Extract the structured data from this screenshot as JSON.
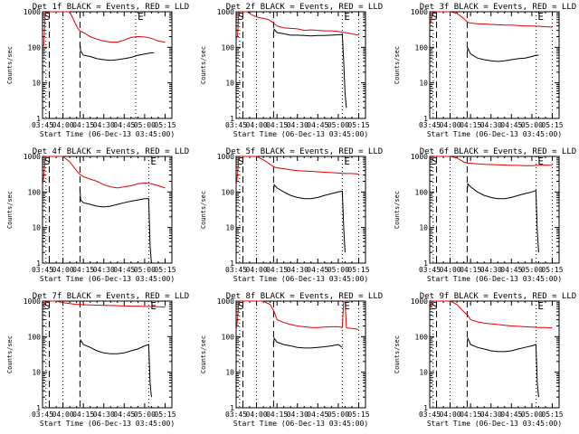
{
  "colors": {
    "events": "#000000",
    "lld": "#e00000",
    "markers": "#000000"
  },
  "chart_data": [
    {
      "type": "line",
      "title": "Det 1f BLACK = Events, RED = LLD",
      "xlabel": "Start Time (06-Dec-13 03:45:00)",
      "ylabel": "Counts/sec",
      "xticks": [
        "03:45",
        "04:00",
        "04:15",
        "04:30",
        "04:45",
        "05:00",
        "05:15"
      ],
      "yticks": [
        "1",
        "10",
        "100",
        "1000"
      ],
      "ylim": [
        1,
        1000
      ],
      "yscale": "log",
      "xlim_minutes_after_start": [
        0,
        95
      ],
      "annotations": [
        "S",
        "E"
      ],
      "dotted_lines_min": [
        2.5,
        15,
        68.5
      ],
      "dashed_lines_min": [
        5,
        27.5
      ],
      "series": [
        {
          "name": "Events",
          "x": [
            27.5,
            28,
            30,
            35,
            40,
            45,
            50,
            55,
            60,
            65,
            70,
            75,
            80,
            82
          ],
          "y": [
            130,
            80,
            60,
            55,
            48,
            45,
            43,
            45,
            48,
            52,
            60,
            65,
            70,
            70
          ]
        },
        {
          "name": "LLD",
          "x": [
            0,
            1,
            2,
            5,
            10,
            15,
            20,
            25,
            27,
            28,
            30,
            35,
            40,
            45,
            50,
            55,
            60,
            65,
            70,
            75,
            80,
            85,
            90
          ],
          "y": [
            100,
            120,
            900,
            1000,
            1000,
            1000,
            1000,
            400,
            300,
            280,
            260,
            200,
            170,
            150,
            140,
            140,
            160,
            190,
            200,
            195,
            180,
            150,
            140
          ]
        }
      ]
    },
    {
      "type": "line",
      "title": "Det 2f BLACK = Events, RED = LLD",
      "xlabel": "Start Time (06-Dec-13 03:45:00)",
      "ylabel": "Counts/sec",
      "xticks": [
        "03:45",
        "04:00",
        "04:15",
        "04:30",
        "04:45",
        "05:00",
        "05:15"
      ],
      "yticks": [
        "1",
        "10",
        "100",
        "1000"
      ],
      "ylim": [
        1,
        1000
      ],
      "yscale": "log",
      "xlim_minutes_after_start": [
        0,
        95
      ],
      "annotations": [
        "S",
        "E"
      ],
      "dotted_lines_min": [
        2.5,
        15,
        78,
        90
      ],
      "dashed_lines_min": [
        5,
        27.5
      ],
      "series": [
        {
          "name": "Events",
          "x": [
            27.5,
            28,
            30,
            35,
            40,
            45,
            50,
            55,
            60,
            65,
            70,
            75,
            78,
            79,
            80,
            81
          ],
          "y": [
            250,
            320,
            260,
            240,
            220,
            220,
            215,
            210,
            215,
            215,
            220,
            225,
            230,
            40,
            5,
            2
          ]
        },
        {
          "name": "LLD",
          "x": [
            0,
            1,
            2,
            4,
            8,
            12,
            16,
            20,
            24,
            27,
            30,
            35,
            40,
            45,
            50,
            55,
            60,
            65,
            70,
            75,
            80,
            85,
            90
          ],
          "y": [
            180,
            200,
            1000,
            1000,
            1000,
            800,
            700,
            650,
            600,
            500,
            400,
            350,
            340,
            330,
            300,
            310,
            300,
            290,
            290,
            280,
            260,
            240,
            220
          ]
        }
      ]
    },
    {
      "type": "line",
      "title": "Det 3f BLACK = Events, RED = LLD",
      "xlabel": "Start Time (06-Dec-13 03:45:00)",
      "ylabel": "Counts/sec",
      "xticks": [
        "03:45",
        "04:00",
        "04:15",
        "04:30",
        "04:45",
        "05:00",
        "05:15"
      ],
      "yticks": [
        "1",
        "10",
        "100",
        "1000"
      ],
      "ylim": [
        1,
        1000
      ],
      "yscale": "log",
      "xlim_minutes_after_start": [
        0,
        95
      ],
      "annotations": [
        "S",
        "E"
      ],
      "dotted_lines_min": [
        2.5,
        15,
        78,
        90
      ],
      "dashed_lines_min": [
        5,
        27.5
      ],
      "series": [
        {
          "name": "Events",
          "x": [
            27.5,
            28,
            30,
            35,
            40,
            45,
            50,
            55,
            60,
            65,
            70,
            75,
            78,
            80
          ],
          "y": [
            70,
            95,
            65,
            50,
            45,
            42,
            40,
            42,
            45,
            48,
            50,
            55,
            60,
            60
          ]
        },
        {
          "name": "LLD",
          "x": [
            0,
            1,
            2,
            5,
            10,
            15,
            20,
            25,
            28,
            30,
            35,
            40,
            45,
            50,
            55,
            60,
            65,
            70,
            75,
            80,
            85,
            90
          ],
          "y": [
            400,
            600,
            900,
            1000,
            1000,
            1000,
            900,
            650,
            500,
            480,
            460,
            450,
            440,
            430,
            420,
            420,
            410,
            400,
            400,
            390,
            380,
            370
          ]
        }
      ]
    },
    {
      "type": "line",
      "title": "Det 4f BLACK = Events, RED = LLD",
      "xlabel": "Start Time (06-Dec-13 03:45:00)",
      "ylabel": "Counts/sec",
      "xticks": [
        "03:45",
        "04:00",
        "04:15",
        "04:30",
        "04:45",
        "05:00",
        "05:15"
      ],
      "yticks": [
        "1",
        "10",
        "100",
        "1000"
      ],
      "ylim": [
        1,
        1000
      ],
      "yscale": "log",
      "xlim_minutes_after_start": [
        0,
        95
      ],
      "annotations": [
        "S",
        "E"
      ],
      "dotted_lines_min": [
        2.5,
        15,
        78
      ],
      "dashed_lines_min": [
        5,
        27.5
      ],
      "series": [
        {
          "name": "Events",
          "x": [
            27.5,
            28,
            30,
            35,
            40,
            45,
            50,
            55,
            60,
            65,
            70,
            75,
            78,
            79,
            80
          ],
          "y": [
            120,
            60,
            50,
            45,
            40,
            38,
            40,
            45,
            50,
            55,
            60,
            65,
            65,
            3,
            1
          ]
        },
        {
          "name": "LLD",
          "x": [
            0,
            1,
            2,
            5,
            10,
            15,
            20,
            25,
            28,
            30,
            35,
            40,
            45,
            50,
            55,
            60,
            65,
            70,
            75,
            80,
            85,
            90
          ],
          "y": [
            150,
            300,
            1000,
            1000,
            1000,
            1000,
            700,
            400,
            300,
            270,
            230,
            200,
            160,
            140,
            130,
            140,
            150,
            170,
            180,
            170,
            150,
            130
          ]
        }
      ]
    },
    {
      "type": "line",
      "title": "Det 5f BLACK = Events, RED = LLD",
      "xlabel": "Start Time (06-Dec-13 03:45:00)",
      "ylabel": "Counts/sec",
      "xticks": [
        "03:45",
        "04:00",
        "04:15",
        "04:30",
        "04:45",
        "05:00",
        "05:15"
      ],
      "yticks": [
        "1",
        "10",
        "100",
        "1000"
      ],
      "ylim": [
        1,
        1000
      ],
      "yscale": "log",
      "xlim_minutes_after_start": [
        0,
        95
      ],
      "annotations": [
        "S",
        "E"
      ],
      "dotted_lines_min": [
        2.5,
        15,
        78,
        90
      ],
      "dashed_lines_min": [
        5,
        27.5
      ],
      "series": [
        {
          "name": "Events",
          "x": [
            27.5,
            28,
            30,
            35,
            40,
            45,
            50,
            55,
            60,
            65,
            70,
            75,
            78,
            79,
            80
          ],
          "y": [
            100,
            160,
            130,
            100,
            80,
            70,
            65,
            65,
            70,
            80,
            90,
            100,
            105,
            10,
            2
          ]
        },
        {
          "name": "LLD",
          "x": [
            0,
            1,
            2,
            5,
            10,
            15,
            20,
            25,
            28,
            30,
            35,
            40,
            45,
            50,
            55,
            60,
            65,
            70,
            75,
            80,
            85,
            90
          ],
          "y": [
            150,
            300,
            1000,
            1000,
            1000,
            1000,
            800,
            600,
            500,
            480,
            450,
            420,
            400,
            390,
            380,
            370,
            360,
            350,
            340,
            330,
            330,
            320
          ]
        }
      ]
    },
    {
      "type": "line",
      "title": "Det 6f BLACK = Events, RED = LLD",
      "xlabel": "Start Time (06-Dec-13 03:45:00)",
      "ylabel": "Counts/sec",
      "xticks": [
        "03:45",
        "04:00",
        "04:15",
        "04:30",
        "04:45",
        "05:00",
        "05:15"
      ],
      "yticks": [
        "1",
        "10",
        "100",
        "1000"
      ],
      "ylim": [
        1,
        1000
      ],
      "yscale": "log",
      "xlim_minutes_after_start": [
        0,
        95
      ],
      "annotations": [
        "S",
        "E"
      ],
      "dotted_lines_min": [
        2.5,
        15,
        78,
        90
      ],
      "dashed_lines_min": [
        5,
        27.5
      ],
      "series": [
        {
          "name": "Events",
          "x": [
            27.5,
            28,
            30,
            35,
            40,
            45,
            50,
            55,
            60,
            65,
            70,
            75,
            78,
            79,
            80
          ],
          "y": [
            100,
            170,
            140,
            100,
            80,
            70,
            65,
            65,
            70,
            80,
            90,
            100,
            110,
            8,
            2
          ]
        },
        {
          "name": "LLD",
          "x": [
            0,
            1,
            2,
            5,
            10,
            15,
            20,
            25,
            28,
            30,
            35,
            40,
            45,
            50,
            55,
            60,
            65,
            70,
            75,
            80,
            85,
            90
          ],
          "y": [
            800,
            900,
            1000,
            1000,
            1000,
            1000,
            900,
            700,
            650,
            640,
            620,
            600,
            590,
            580,
            570,
            560,
            560,
            550,
            550,
            560,
            570,
            560
          ]
        }
      ]
    },
    {
      "type": "line",
      "title": "Det 7f BLACK = Events, RED = LLD",
      "xlabel": "Start Time (06-Dec-13 03:45:00)",
      "ylabel": "Counts/sec",
      "xticks": [
        "03:45",
        "04:00",
        "04:15",
        "04:30",
        "04:45",
        "05:00",
        "05:15"
      ],
      "yticks": [
        "1",
        "10",
        "100",
        "1000"
      ],
      "ylim": [
        1,
        1000
      ],
      "yscale": "log",
      "xlim_minutes_after_start": [
        0,
        95
      ],
      "annotations": [
        "S",
        "E"
      ],
      "dotted_lines_min": [
        2.5,
        15,
        78
      ],
      "dashed_lines_min": [
        5,
        27.5
      ],
      "series": [
        {
          "name": "Events",
          "x": [
            27.5,
            28,
            30,
            35,
            40,
            45,
            50,
            55,
            60,
            65,
            70,
            75,
            78,
            79,
            80
          ],
          "y": [
            60,
            80,
            60,
            50,
            40,
            35,
            33,
            33,
            35,
            40,
            45,
            55,
            60,
            5,
            2
          ]
        },
        {
          "name": "LLD",
          "x": [
            0,
            1,
            2,
            5,
            10,
            15,
            20,
            25,
            28,
            30,
            35,
            40,
            45,
            50,
            55,
            60,
            65,
            70,
            75,
            80,
            85,
            90
          ],
          "y": [
            700,
            800,
            900,
            1000,
            1000,
            900,
            850,
            800,
            800,
            790,
            780,
            770,
            760,
            750,
            740,
            730,
            720,
            720,
            710,
            700,
            690,
            680
          ]
        }
      ]
    },
    {
      "type": "line",
      "title": "Det 8f BLACK = Events, RED = LLD",
      "xlabel": "Start Time (06-Dec-13 03:45:00)",
      "ylabel": "Counts/sec",
      "xticks": [
        "03:45",
        "04:00",
        "04:15",
        "04:30",
        "04:45",
        "05:00",
        "05:15"
      ],
      "yticks": [
        "1",
        "10",
        "100",
        "1000"
      ],
      "ylim": [
        1,
        1000
      ],
      "yscale": "log",
      "xlim_minutes_after_start": [
        0,
        95
      ],
      "annotations": [
        "S",
        "E"
      ],
      "dotted_lines_min": [
        2.5,
        15,
        78,
        90
      ],
      "dashed_lines_min": [
        5,
        27.5
      ],
      "series": [
        {
          "name": "Events",
          "x": [
            27.5,
            28,
            30,
            35,
            40,
            45,
            50,
            55,
            60,
            65,
            70,
            75,
            78
          ],
          "y": [
            60,
            90,
            70,
            60,
            55,
            50,
            48,
            48,
            50,
            52,
            55,
            60,
            50
          ]
        },
        {
          "name": "LLD",
          "x": [
            0,
            1,
            2,
            5,
            10,
            15,
            20,
            25,
            28,
            30,
            35,
            40,
            45,
            50,
            55,
            60,
            65,
            70,
            75,
            78,
            79,
            80,
            81,
            82,
            85,
            90
          ],
          "y": [
            150,
            300,
            1000,
            1000,
            1000,
            1000,
            1000,
            800,
            500,
            300,
            250,
            220,
            200,
            190,
            180,
            180,
            185,
            190,
            190,
            180,
            1000,
            1000,
            180,
            175,
            170,
            160
          ]
        }
      ]
    },
    {
      "type": "line",
      "title": "Det 9f BLACK = Events, RED = LLD",
      "xlabel": "Start Time (06-Dec-13 03:45:00)",
      "ylabel": "Counts/sec",
      "xticks": [
        "03:45",
        "04:00",
        "04:15",
        "04:30",
        "04:45",
        "05:00",
        "05:15"
      ],
      "yticks": [
        "1",
        "10",
        "100",
        "1000"
      ],
      "ylim": [
        1,
        1000
      ],
      "yscale": "log",
      "xlim_minutes_after_start": [
        0,
        95
      ],
      "annotations": [
        "S",
        "E"
      ],
      "dotted_lines_min": [
        2.5,
        15,
        78
      ],
      "dashed_lines_min": [
        5,
        27.5
      ],
      "series": [
        {
          "name": "Events",
          "x": [
            27.5,
            28,
            30,
            35,
            40,
            45,
            50,
            55,
            60,
            65,
            70,
            75,
            78,
            79,
            80
          ],
          "y": [
            70,
            90,
            60,
            50,
            45,
            40,
            38,
            38,
            40,
            45,
            50,
            55,
            60,
            5,
            2
          ]
        },
        {
          "name": "LLD",
          "x": [
            0,
            1,
            2,
            5,
            10,
            15,
            20,
            25,
            28,
            30,
            35,
            40,
            45,
            50,
            55,
            60,
            65,
            70,
            75,
            80,
            85,
            90
          ],
          "y": [
            600,
            800,
            1000,
            1000,
            1000,
            1000,
            800,
            500,
            400,
            300,
            260,
            240,
            230,
            220,
            210,
            200,
            195,
            190,
            185,
            180,
            180,
            175
          ]
        }
      ]
    }
  ]
}
